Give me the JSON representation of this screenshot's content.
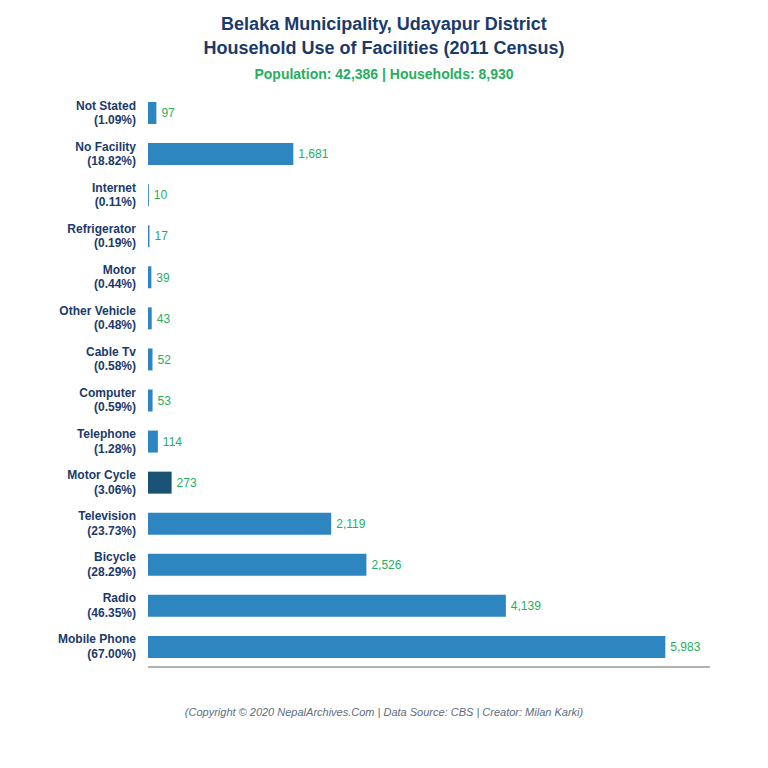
{
  "chart_data": {
    "type": "bar",
    "orientation": "horizontal",
    "title": "Belaka Municipality, Udayapur District\nHousehold Use of Facilities (2011 Census)",
    "subtitle": "Population: 42,386 | Households: 8,930",
    "annotations": [
      "(Copyright © 2020 NepalArchives.Com | Data Source: CBS | Creator: Milan Karki)"
    ],
    "categories": [
      "Not Stated\n(1.09%)",
      "No Facility\n(18.82%)",
      "Internet\n(0.11%)",
      "Refrigerator\n(0.19%)",
      "Motor\n(0.44%)",
      "Other Vehicle\n(0.48%)",
      "Cable Tv\n(0.58%)",
      "Computer\n(0.59%)",
      "Telephone\n(1.28%)",
      "Motor Cycle\n(3.06%)",
      "Television\n(23.73%)",
      "Bicycle\n(28.29%)",
      "Radio\n(46.35%)",
      "Mobile Phone\n(67.00%)"
    ],
    "values": [
      97,
      1681,
      10,
      17,
      39,
      43,
      52,
      53,
      114,
      273,
      2119,
      2526,
      4139,
      5983
    ],
    "value_labels": [
      "97",
      "1,681",
      "10",
      "17",
      "39",
      "43",
      "52",
      "53",
      "114",
      "273",
      "2,119",
      "2,526",
      "4,139",
      "5,983"
    ],
    "data_labels": true,
    "colors": [
      "#2e86c1",
      "#2e86c1",
      "#2e86c1",
      "#2e86c1",
      "#2e86c1",
      "#2e86c1",
      "#2e86c1",
      "#2e86c1",
      "#2e86c1",
      "#1a5276",
      "#2e86c1",
      "#2e86c1",
      "#2e86c1",
      "#2e86c1"
    ],
    "xlim": [
      0,
      6500
    ],
    "tick_labels": "y",
    "grid": false
  }
}
